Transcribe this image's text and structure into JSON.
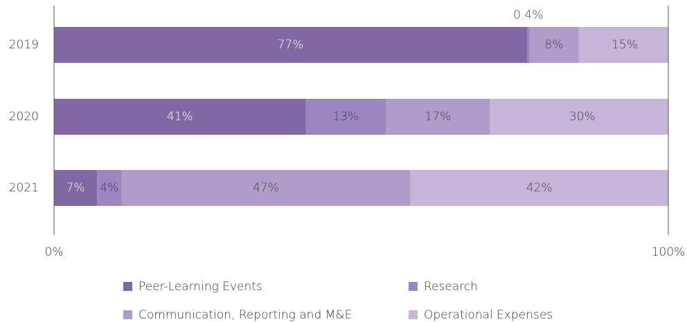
{
  "chart_data": {
    "type": "stacked_bar_horizontal",
    "categories": [
      "2019",
      "2020",
      "2021"
    ],
    "series": [
      {
        "name": "Peer-Learning Events",
        "color": "#7f68a3",
        "values": [
          77,
          41,
          7
        ],
        "value_labels": [
          "77%",
          "41%",
          "7%"
        ]
      },
      {
        "name": "Research",
        "color": "#9c86bf",
        "values": [
          0.4,
          13,
          4
        ],
        "value_labels": [
          "0.4%",
          "13%",
          "4%"
        ]
      },
      {
        "name": "Communication, Reporting and M&E",
        "color": "#b09ccb",
        "values": [
          8,
          17,
          47
        ],
        "value_labels": [
          "8%",
          "17%",
          "47%"
        ]
      },
      {
        "name": "Operational Expenses",
        "color": "#c7b5d9",
        "values": [
          15,
          30,
          42
        ],
        "value_labels": [
          "15%",
          "30%",
          "42%"
        ]
      }
    ],
    "xlim": [
      0,
      100
    ],
    "xticks": [
      {
        "value": 0,
        "label": "0%"
      },
      {
        "value": 100,
        "label": "100%"
      }
    ],
    "legend": "bottom"
  }
}
